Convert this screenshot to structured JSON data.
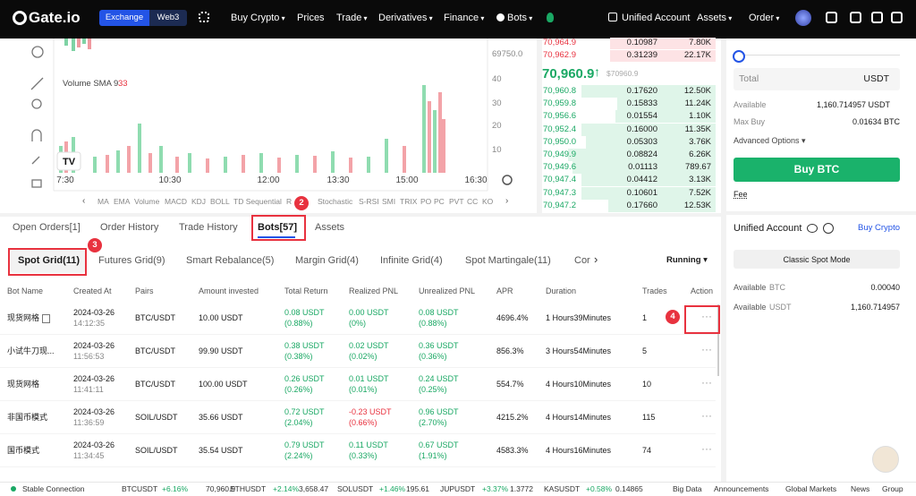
{
  "nav": {
    "logo": "Gate.io",
    "exchange": "Exchange",
    "web3": "Web3",
    "menu": [
      "Buy Crypto",
      "Prices",
      "Trade",
      "Derivatives",
      "Finance",
      "Bots"
    ],
    "right": [
      "Unified Account",
      "Assets",
      "Order"
    ]
  },
  "chart": {
    "price_label": "69750.0",
    "volume_label": "Volume SMA 9",
    "volume_value": 33,
    "volume_axis": [
      40,
      30,
      20,
      10
    ],
    "times": [
      "7:30",
      "10:30",
      "12:00",
      "13:30",
      "15:00",
      "16:30"
    ],
    "indicators": [
      "MA",
      "EMA",
      "Volume",
      "MACD",
      "KDJ",
      "BOLL",
      "TD Sequential",
      "R",
      "Stochastic",
      "S-RSI",
      "SMI",
      "TRIX",
      "PO",
      "PC",
      "PVT",
      "CC",
      "KO"
    ]
  },
  "order_book": {
    "asks": [
      [
        "70,964.9",
        "0.10987",
        "7.80K"
      ],
      [
        "70,962.9",
        "0.31239",
        "22.17K"
      ]
    ],
    "last_price": "70,960.9",
    "mark_price": "$70960.9",
    "bids": [
      [
        "70,960.8",
        "0.17620",
        "12.50K"
      ],
      [
        "70,959.8",
        "0.15833",
        "11.24K"
      ],
      [
        "70,956.6",
        "0.01554",
        "1.10K"
      ],
      [
        "70,952.4",
        "0.16000",
        "11.35K"
      ],
      [
        "70,950.0",
        "0.05303",
        "3.76K"
      ],
      [
        "70,949.9",
        "0.08824",
        "6.26K"
      ],
      [
        "70,949.6",
        "0.01113",
        "789.67"
      ],
      [
        "70,947.4",
        "0.04412",
        "3.13K"
      ],
      [
        "70,947.3",
        "0.10601",
        "7.52K"
      ],
      [
        "70,947.2",
        "0.17660",
        "12.53K"
      ]
    ]
  },
  "order_form": {
    "total_label": "Total",
    "total_unit": "USDT",
    "available_label": "Available",
    "available_value": "1,160.714957 USDT",
    "max_buy_label": "Max Buy",
    "max_buy_value": "0.01634 BTC",
    "advanced": "Advanced Options",
    "buy_button": "Buy BTC",
    "fee": "Fee"
  },
  "account": {
    "title": "Unified Account",
    "buy_crypto": "Buy Crypto",
    "mode_button": "Classic Spot Mode",
    "balances": [
      {
        "label": "Available",
        "asset": "BTC",
        "value": "0.00040"
      },
      {
        "label": "Available",
        "asset": "USDT",
        "value": "1,160.714957"
      }
    ]
  },
  "tabs": [
    "Open Orders[1]",
    "Order History",
    "Trade History",
    "Bots[57]",
    "Assets"
  ],
  "sub_tabs": [
    "Spot Grid(11)",
    "Futures Grid(9)",
    "Smart Rebalance(5)",
    "Margin Grid(4)",
    "Infinite Grid(4)",
    "Spot Martingale(11)",
    "Cor"
  ],
  "status_filter": "Running",
  "table": {
    "headers": [
      "Bot Name",
      "Created At",
      "Pairs",
      "Amount invested",
      "Total Return",
      "Realized PNL",
      "Unrealized PNL",
      "APR",
      "Duration",
      "Trades",
      "Action"
    ],
    "rows": [
      [
        "现货网格",
        "2024-03-26",
        "14:12:35",
        "BTC/USDT",
        "10.00 USDT",
        "0.08 USDT",
        "(0.88%)",
        "0.00 USDT",
        "(0%)",
        "0.08 USDT",
        "(0.88%)",
        "4696.4%",
        "1 Hours39Minutes",
        1
      ],
      [
        "小试牛刀现...",
        "2024-03-26",
        "11:56:53",
        "BTC/USDT",
        "99.90 USDT",
        "0.38 USDT",
        "(0.38%)",
        "0.02 USDT",
        "(0.02%)",
        "0.36 USDT",
        "(0.36%)",
        "856.3%",
        "3 Hours54Minutes",
        5
      ],
      [
        "现货网格",
        "2024-03-26",
        "11:41:11",
        "BTC/USDT",
        "100.00 USDT",
        "0.26 USDT",
        "(0.26%)",
        "0.01 USDT",
        "(0.01%)",
        "0.24 USDT",
        "(0.25%)",
        "554.7%",
        "4 Hours10Minutes",
        10
      ],
      [
        "非国币模式",
        "2024-03-26",
        "11:36:59",
        "SOIL/USDT",
        "35.66 USDT",
        "0.72 USDT",
        "(2.04%)",
        "-0.23 USDT",
        "(0.66%)",
        "0.96 USDT",
        "(2.70%)",
        "4215.2%",
        "4 Hours14Minutes",
        115
      ],
      [
        "国币模式",
        "2024-03-26",
        "11:34:45",
        "SOIL/USDT",
        "35.54 USDT",
        "0.79 USDT",
        "(2.24%)",
        "0.11 USDT",
        "(0.33%)",
        "0.67 USDT",
        "(1.91%)",
        "4583.3%",
        "4 Hours16Minutes",
        74
      ]
    ]
  },
  "footer": {
    "status": "Stable Connection",
    "tickers": [
      {
        "symbol": "BTCUSDT",
        "change": "+6.16%",
        "price": "70,960.9"
      },
      {
        "symbol": "ETHUSDT",
        "change": "+2.14%",
        "price": "3,658.47"
      },
      {
        "symbol": "SOLUSDT",
        "change": "+1.46%",
        "price": "195.61"
      },
      {
        "symbol": "JUPUSDT",
        "change": "+3.37%",
        "price": "1.3772"
      },
      {
        "symbol": "KASUSDT",
        "change": "+0.58%",
        "price": "0.14865"
      }
    ],
    "links": [
      "Big Data",
      "Announcements",
      "Global Markets",
      "News",
      "Group"
    ]
  },
  "annotations": [
    2,
    3,
    4
  ]
}
